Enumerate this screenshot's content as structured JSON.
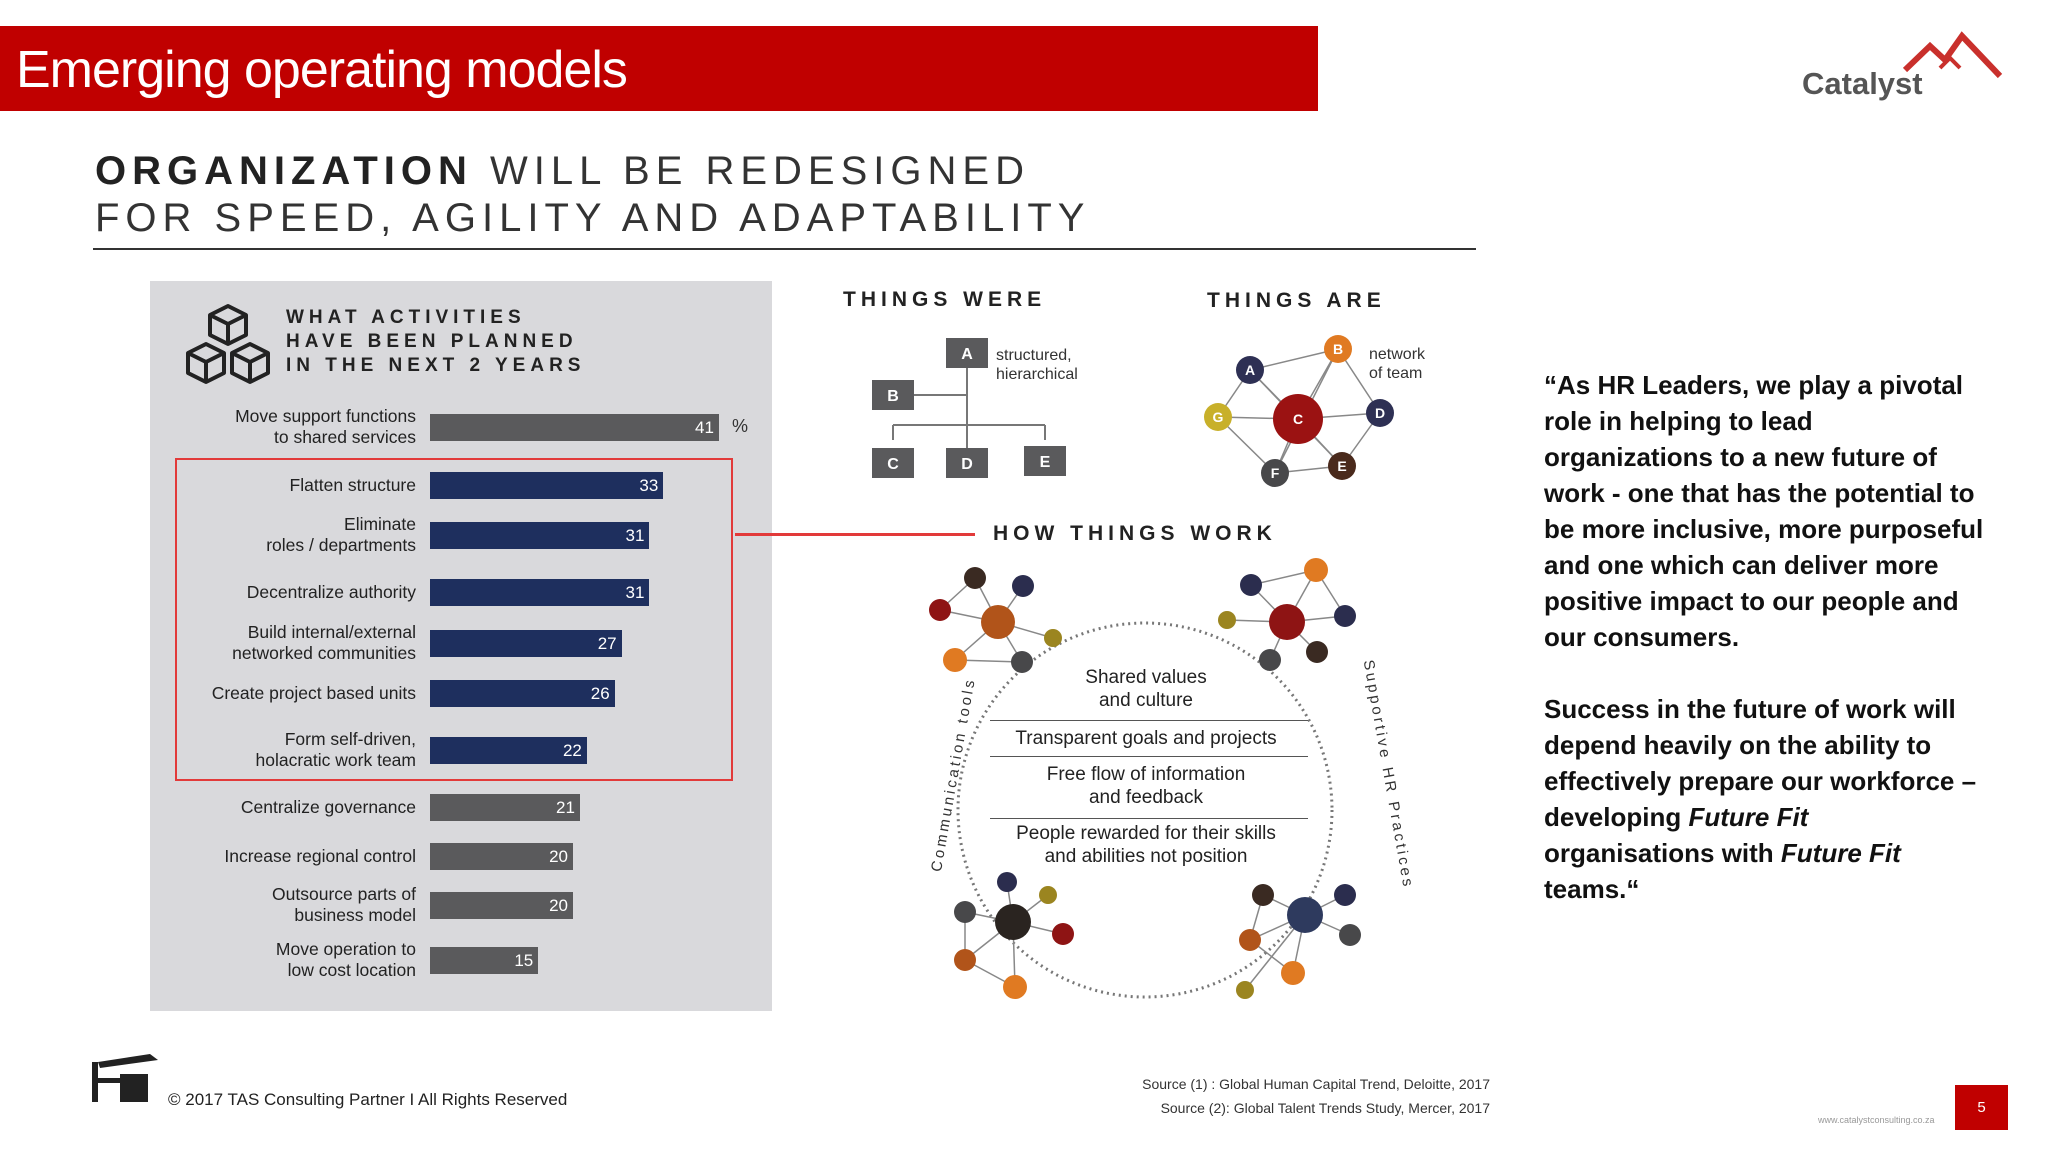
{
  "slide": {
    "title": "Emerging operating models",
    "page_number": "5",
    "url": "www.catalystconsulting.co.za",
    "brand": "Catalyst",
    "colors": {
      "accent": "#c00000",
      "bar_top": "#5a5a5c",
      "bar_mid": "#1e2f5e",
      "bar_low": "#5a5a5c",
      "highlight": "#e23a3a"
    }
  },
  "headline": {
    "bold": "ORGANIZATION",
    "rest_line1": " WILL BE REDESIGNED",
    "line2": "FOR SPEED, AGILITY AND ADAPTABILITY"
  },
  "activities": {
    "title_line1": "WHAT ACTIVITIES",
    "title_line2": "HAVE BEEN PLANNED",
    "title_line3": "IN THE NEXT 2 YEARS",
    "unit": "%"
  },
  "chart_data": {
    "type": "bar",
    "orientation": "horizontal",
    "unit": "%",
    "categories": [
      [
        "Move support functions",
        "to shared services"
      ],
      [
        "Flatten structure"
      ],
      [
        "Eliminate",
        "roles / departments"
      ],
      [
        "Decentralize authority"
      ],
      [
        "Build internal/external",
        "networked communities"
      ],
      [
        "Create project based units"
      ],
      [
        "Form self-driven,",
        "holacratic work team"
      ],
      [
        "Centralize governance"
      ],
      [
        "Increase regional control"
      ],
      [
        "Outsource parts of",
        "business model"
      ],
      [
        "Move operation to",
        "low cost location"
      ]
    ],
    "values": [
      41,
      33,
      31,
      31,
      27,
      26,
      22,
      21,
      20,
      20,
      15
    ],
    "highlighted": [
      false,
      true,
      true,
      true,
      true,
      true,
      true,
      false,
      false,
      false,
      false
    ]
  },
  "diagrams": {
    "things_were": "THINGS WERE",
    "things_are": "THINGS ARE",
    "were_note_1": "structured,",
    "were_note_2": "hierarchical",
    "are_note_1": "network",
    "are_note_2": "of team",
    "were_nodes": [
      "A",
      "B",
      "C",
      "D",
      "E"
    ],
    "are_nodes": [
      "A",
      "B",
      "C",
      "D",
      "E",
      "F",
      "G"
    ],
    "how_things_work": "HOW THINGS WORK",
    "left_arc_label": "Communication tools",
    "right_arc_label": "Supportive HR Practices",
    "center_items": [
      "Shared values\nand culture",
      "Transparent goals and projects",
      "Free flow of information\nand feedback",
      "People rewarded for their skills\nand abilities not position"
    ]
  },
  "quote": {
    "p1": "“As HR Leaders, we play a pivotal role in helping to lead organizations to a new future of work - one that has the potential to be more inclusive, more purposeful and one which can deliver more positive impact to our people and our consumers.",
    "p2_a": "Success in the future of work will depend heavily on the ability to effectively prepare our workforce – developing ",
    "p2_em1": "Future Fit",
    "p2_b": " organisations with ",
    "p2_em2": "Future Fit",
    "p2_c": " teams.“"
  },
  "footer": {
    "copyright": "© 2017 TAS Consulting Partner  I  All Rights Reserved",
    "source1": "Source (1)  : Global Human Capital Trend, Deloitte, 2017",
    "source2": "Source (2):  Global Talent Trends Study, Mercer, 2017"
  }
}
